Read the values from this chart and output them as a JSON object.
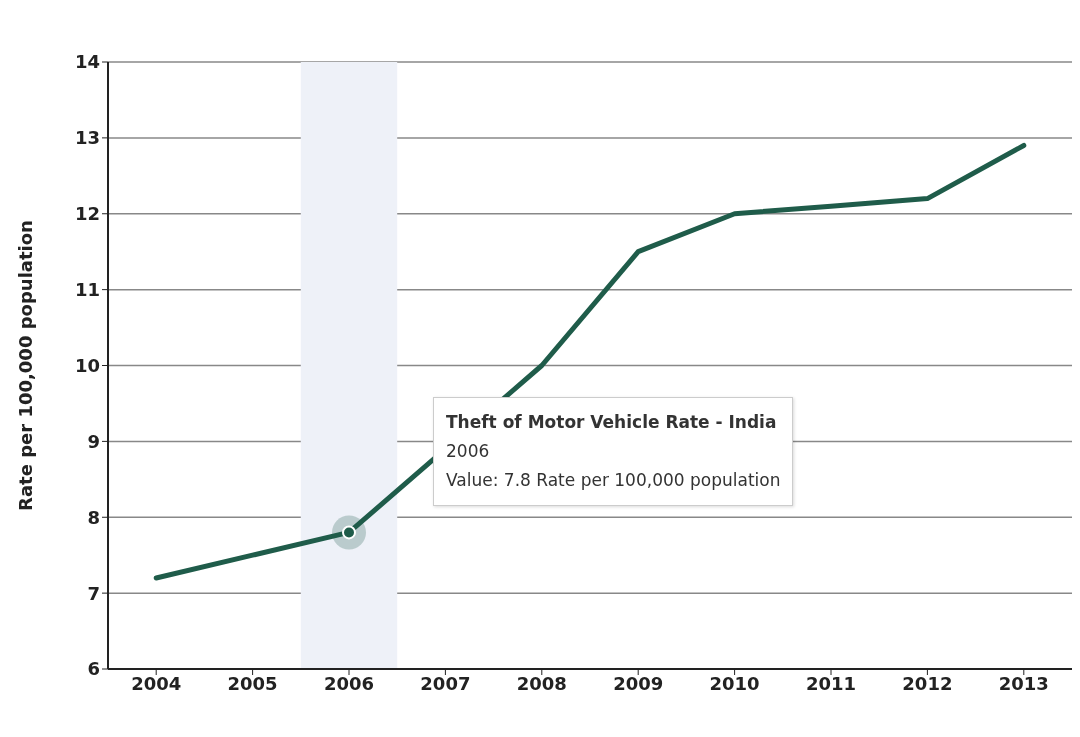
{
  "chart_data": {
    "type": "line",
    "ylabel": "Rate per 100,000 population",
    "categories": [
      "2004",
      "2005",
      "2006",
      "2007",
      "2008",
      "2009",
      "2010",
      "2011",
      "2012",
      "2013"
    ],
    "series": [
      {
        "color": "#1f5c4a",
        "values": [
          7.2,
          7.5,
          7.8,
          null,
          10.0,
          11.5,
          12.0,
          12.1,
          12.2,
          12.9
        ]
      }
    ],
    "ylim": [
      6,
      14
    ],
    "yticks": [
      6,
      7,
      8,
      9,
      10,
      11,
      12,
      13,
      14
    ],
    "grid": "y",
    "legend": false,
    "marker": "none",
    "line_style": "solid",
    "bands": [
      {
        "axis": "x",
        "from": "2006",
        "to": "2006",
        "color": "#eef1f8"
      }
    ],
    "annotations": [
      "Theft of Motor Vehicle Rate - India\n2006\nValue: 7.8 Rate per 100,000 population"
    ]
  }
}
